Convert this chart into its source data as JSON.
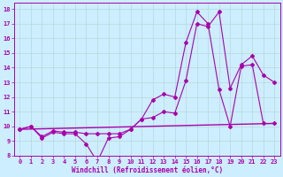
{
  "xlabel": "Windchill (Refroidissement éolien,°C)",
  "bg_color": "#cceeff",
  "grid_color": "#b8d8d8",
  "line_color": "#aa00aa",
  "xlim": [
    -0.5,
    23.5
  ],
  "ylim": [
    8,
    18.4
  ],
  "yticks": [
    8,
    9,
    10,
    11,
    12,
    13,
    14,
    15,
    16,
    17,
    18
  ],
  "xticks": [
    0,
    1,
    2,
    3,
    4,
    5,
    6,
    7,
    8,
    9,
    10,
    11,
    12,
    13,
    14,
    15,
    16,
    17,
    18,
    19,
    20,
    21,
    22,
    23
  ],
  "series1_x": [
    0,
    1,
    2,
    3,
    4,
    5,
    6,
    7,
    8,
    9,
    10,
    11,
    12,
    13,
    14,
    15,
    16,
    17,
    18,
    19,
    20,
    21,
    22,
    23
  ],
  "series1_y": [
    9.8,
    10.0,
    9.2,
    9.6,
    9.5,
    9.5,
    8.8,
    7.6,
    9.2,
    9.3,
    9.8,
    10.5,
    10.6,
    11.0,
    10.9,
    13.1,
    17.0,
    16.8,
    17.8,
    12.6,
    14.2,
    14.8,
    13.5,
    13.0
  ],
  "series2_x": [
    0,
    1,
    2,
    3,
    4,
    5,
    6,
    7,
    8,
    9,
    10,
    11,
    12,
    13,
    14,
    15,
    16,
    17,
    18,
    19,
    20,
    21,
    22,
    23
  ],
  "series2_y": [
    9.8,
    10.0,
    9.3,
    9.7,
    9.6,
    9.6,
    9.5,
    9.5,
    9.5,
    9.5,
    9.8,
    10.5,
    11.8,
    12.2,
    12.0,
    15.7,
    17.8,
    17.0,
    12.5,
    10.0,
    14.1,
    14.2,
    10.2,
    10.2
  ],
  "series3_x": [
    0,
    23
  ],
  "series3_y": [
    9.8,
    10.2
  ],
  "tick_fontsize": 5,
  "xlabel_fontsize": 5.5
}
